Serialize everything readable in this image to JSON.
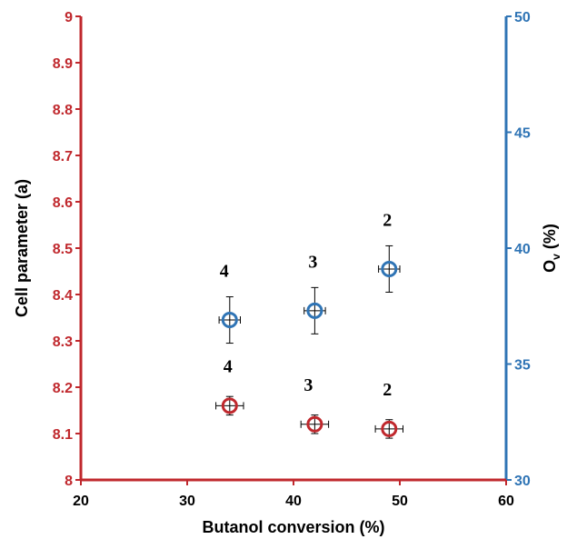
{
  "chart_data": {
    "type": "scatter",
    "title": "",
    "xlabel": "Butanol conversion (%)",
    "ylabel_left": "Cell parameter (a)",
    "ylabel_right_main": "O",
    "ylabel_right_sub": "v",
    "ylabel_right_unit": "(%)",
    "xlim": [
      20,
      60
    ],
    "ylim_left": [
      8,
      9
    ],
    "ylim_right": [
      30,
      50
    ],
    "x_ticks": [
      "20",
      "30",
      "40",
      "50",
      "60"
    ],
    "y_left_ticks": [
      "8",
      "8.1",
      "8.2",
      "8.3",
      "8.4",
      "8.5",
      "8.6",
      "8.7",
      "8.8",
      "8.9",
      "9"
    ],
    "y_right_ticks": [
      "30",
      "35",
      "40",
      "45",
      "50"
    ],
    "grid": false,
    "colors": {
      "left_axis": "#c0282d",
      "right_axis": "#2f74b5",
      "cell_marker": "#c0282d",
      "ov_marker": "#2f74b5",
      "error_bar": "#000000"
    },
    "series": [
      {
        "axis": "left",
        "marker": "open-circle",
        "points": [
          {
            "x": 34,
            "y": 8.16,
            "xerr": 1.3,
            "yerr": 0.02,
            "label": "4"
          },
          {
            "x": 42,
            "y": 8.12,
            "xerr": 1.3,
            "yerr": 0.02,
            "label": "3"
          },
          {
            "x": 49,
            "y": 8.11,
            "xerr": 1.3,
            "yerr": 0.02,
            "label": "2"
          }
        ]
      },
      {
        "axis": "right",
        "marker": "open-circle",
        "points": [
          {
            "x": 34,
            "y": 36.9,
            "xerr": 1.0,
            "yerr": 1.0,
            "label": "4"
          },
          {
            "x": 42,
            "y": 37.3,
            "xerr": 1.0,
            "yerr": 1.0,
            "label": "3"
          },
          {
            "x": 49,
            "y": 39.1,
            "xerr": 1.0,
            "yerr": 1.0,
            "label": "2"
          }
        ]
      }
    ]
  }
}
